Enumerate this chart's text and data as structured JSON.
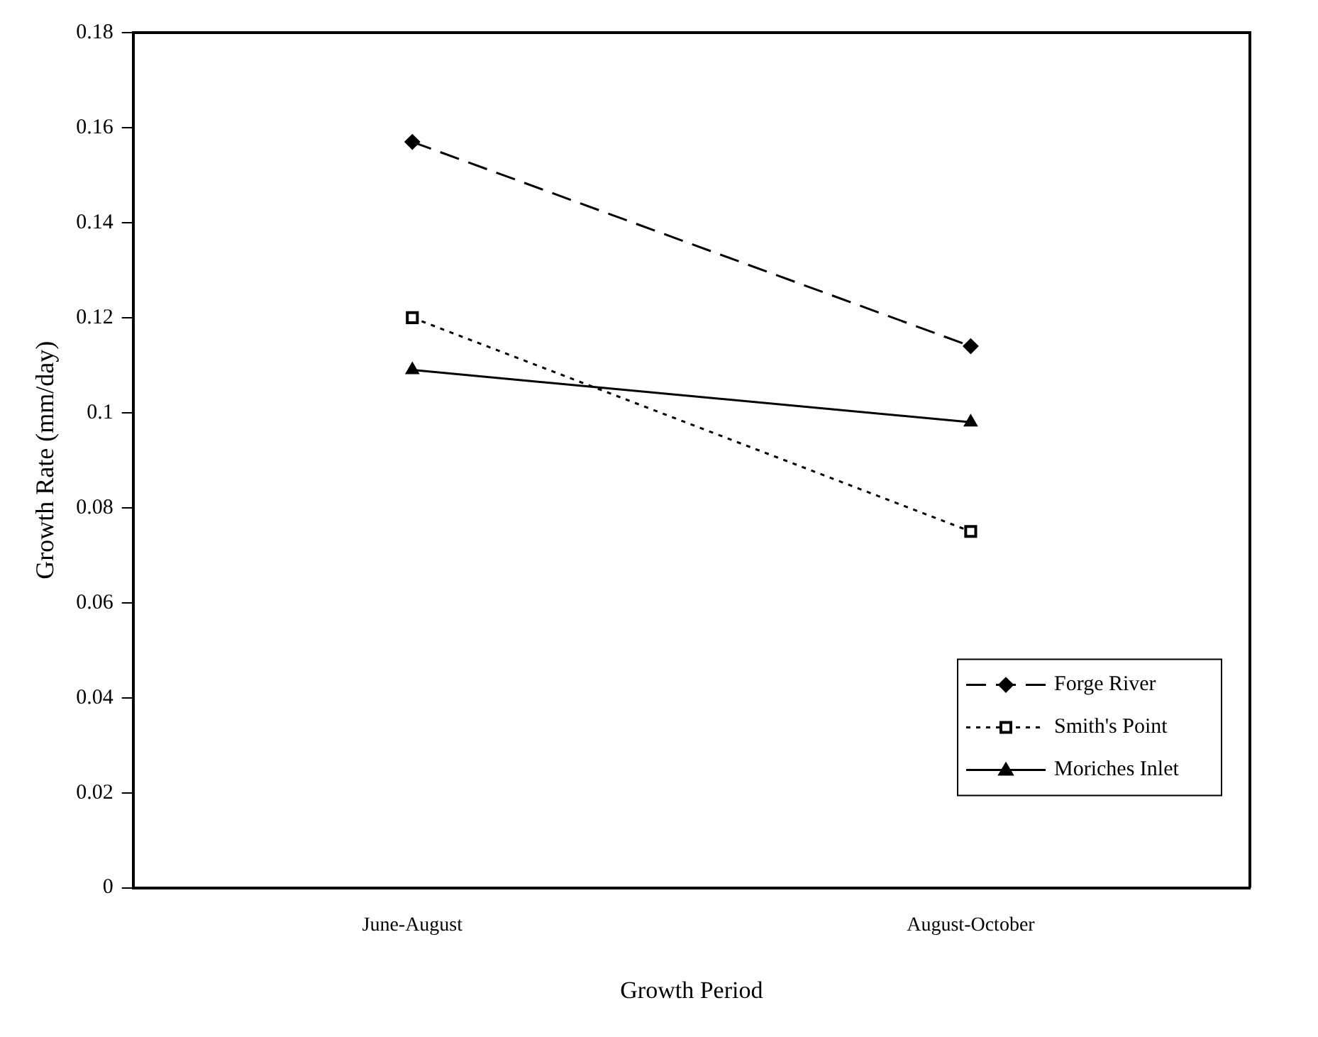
{
  "chart_data": {
    "type": "line",
    "xlabel": "Growth Period",
    "ylabel": "Growth Rate (mm/day)",
    "categories": [
      "June-August",
      "August-October"
    ],
    "ylim": [
      0,
      0.18
    ],
    "yticks": [
      0,
      0.02,
      0.04,
      0.06,
      0.08,
      0.1,
      0.12,
      0.14,
      0.16,
      0.18
    ],
    "grid": false,
    "legend": "bottom right",
    "series": [
      {
        "name": "Forge River",
        "color": "#000000",
        "values": [
          0.157,
          0.114
        ],
        "marker": "diamond",
        "line_style": "dashed"
      },
      {
        "name": "Smith's Point",
        "color": "#000000",
        "values": [
          0.12,
          0.075
        ],
        "marker": "square",
        "line_style": "dotted"
      },
      {
        "name": "Moriches Inlet",
        "color": "#000000",
        "values": [
          0.109,
          0.098
        ],
        "marker": "triangle",
        "line_style": "solid"
      }
    ]
  }
}
